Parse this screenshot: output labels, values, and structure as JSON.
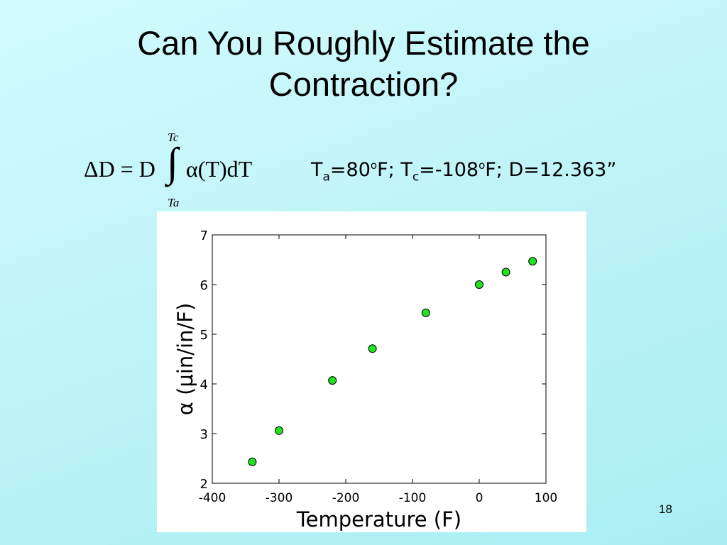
{
  "slide": {
    "title_line1": "Can You Roughly Estimate the",
    "title_line2": "Contraction?",
    "formula": {
      "lhs": "ΔD = D",
      "integrand": "α(T)dT",
      "upper_limit": "Tc",
      "lower_limit": "Ta"
    },
    "params": {
      "ta_symbol": "T",
      "ta_sub": "a",
      "ta_value": "=80",
      "ta_deg": "o",
      "ta_unit": "F; ",
      "tc_symbol": "T",
      "tc_sub": "c",
      "tc_value": "=-108",
      "tc_deg": "o",
      "tc_unit": "F; D=12.363”"
    },
    "page_number": "18"
  },
  "chart_data": {
    "type": "scatter",
    "xlabel": "Temperature (F)",
    "ylabel": "α (μin/in/F)",
    "xlim": [
      -400,
      100
    ],
    "ylim": [
      2,
      7
    ],
    "xticks": [
      -400,
      -300,
      -200,
      -100,
      0,
      100
    ],
    "yticks": [
      2,
      3,
      4,
      5,
      6,
      7
    ],
    "grid": false,
    "marker_color": "#22e022",
    "x": [
      -340,
      -300,
      -220,
      -160,
      -80,
      0,
      40,
      80
    ],
    "y": [
      2.43,
      3.06,
      4.07,
      4.71,
      5.43,
      6.0,
      6.25,
      6.47
    ]
  }
}
